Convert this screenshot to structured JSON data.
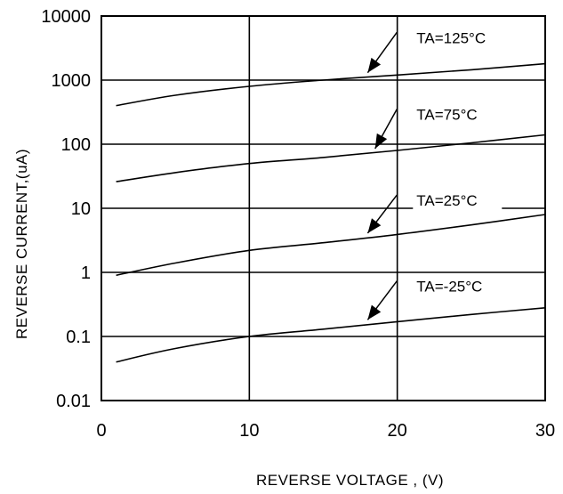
{
  "chart_data": {
    "type": "line",
    "title": "",
    "xlabel": "REVERSE VOLTAGE , (V)",
    "ylabel": "REVERSE CURRENT,(uA)",
    "xlim": [
      0,
      30
    ],
    "ylim": [
      0.01,
      10000
    ],
    "yscale": "log",
    "grid": true,
    "x_ticks": [
      0,
      10,
      20,
      30
    ],
    "x_tick_labels": [
      "0",
      "10",
      "20",
      "30"
    ],
    "y_ticks": [
      0.01,
      0.1,
      1,
      10,
      100,
      1000,
      10000
    ],
    "y_tick_labels": [
      "0.01",
      "0.1",
      "1",
      "10",
      "100",
      "1000",
      "10000"
    ],
    "series": [
      {
        "name": "TA=125°C",
        "x": [
          1,
          5,
          10,
          15,
          20,
          25,
          30
        ],
        "y": [
          400,
          580,
          800,
          1000,
          1200,
          1450,
          1800
        ]
      },
      {
        "name": "TA=75°C",
        "x": [
          1,
          5,
          10,
          15,
          20,
          25,
          30
        ],
        "y": [
          26,
          36,
          50,
          62,
          80,
          105,
          140
        ]
      },
      {
        "name": "TA=25°C",
        "x": [
          1,
          5,
          10,
          15,
          20,
          25,
          30
        ],
        "y": [
          0.9,
          1.4,
          2.2,
          2.9,
          3.9,
          5.5,
          8
        ]
      },
      {
        "name": "TA=-25°C",
        "x": [
          1,
          5,
          10,
          15,
          20,
          25,
          30
        ],
        "y": [
          0.04,
          0.065,
          0.1,
          0.13,
          0.17,
          0.22,
          0.28
        ]
      }
    ],
    "annotations": [
      {
        "text": "TA=125°C",
        "series": 0,
        "arrow_x": 18,
        "arrow_y": 1150,
        "label_x": 21.3,
        "label_y": 3800
      },
      {
        "text": "TA=75°C",
        "series": 1,
        "arrow_x": 18.5,
        "arrow_y": 75,
        "label_x": 21.3,
        "label_y": 240
      },
      {
        "text": "TA=25°C",
        "series": 2,
        "arrow_x": 18,
        "arrow_y": 3.6,
        "label_x": 21.3,
        "label_y": 11
      },
      {
        "text": "TA=-25°C",
        "series": 3,
        "arrow_x": 18,
        "arrow_y": 0.16,
        "label_x": 21.3,
        "label_y": 0.5
      }
    ]
  }
}
